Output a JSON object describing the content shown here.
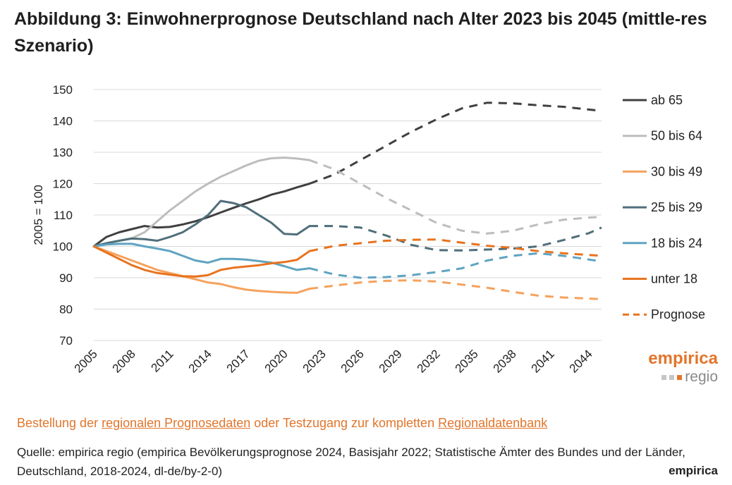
{
  "title": "Abbildung 3: Einwohnerprognose Deutschland nach Alter 2023 bis 2045 (mittle-res Szenario)",
  "order_text": {
    "prefix": "Bestellung der ",
    "link1": "regionalen Prognosedaten",
    "middle": " oder Testzugang zur kompletten ",
    "link2": "Regionaldatenbank"
  },
  "source_text": "Quelle: empirica regio (empirica Bevölkerungsprognose 2024, Basisjahr 2022; Statistische Ämter des Bundes und der Länder, Deutschland, 2018-2024, dl-de/by-2-0)",
  "footer_brand": "empirica",
  "logo": {
    "top": "empirica",
    "sub": "regio"
  },
  "colors": {
    "accent": "#e2752b"
  },
  "chart_data": {
    "type": "line",
    "ylabel": "2005 = 100",
    "xlabel": "",
    "ylim": [
      70,
      150
    ],
    "yticks": [
      70,
      80,
      90,
      100,
      110,
      120,
      130,
      140,
      150
    ],
    "xlim": [
      2005,
      2045
    ],
    "xticks": [
      2005,
      2008,
      2011,
      2014,
      2017,
      2020,
      2023,
      2026,
      2029,
      2032,
      2035,
      2038,
      2041,
      2044
    ],
    "grid": "horizontal",
    "legend_position": "right",
    "legend_prognose_label": "Prognose",
    "series": [
      {
        "name": "ab 65",
        "color": "#404040",
        "actual": [
          [
            2005,
            100
          ],
          [
            2006,
            103
          ],
          [
            2007,
            104.5
          ],
          [
            2008,
            105.5
          ],
          [
            2009,
            106.5
          ],
          [
            2010,
            106
          ],
          [
            2011,
            106.2
          ],
          [
            2012,
            107
          ],
          [
            2013,
            108
          ],
          [
            2014,
            109.3
          ],
          [
            2015,
            110.8
          ],
          [
            2016,
            112.3
          ],
          [
            2017,
            113.7
          ],
          [
            2018,
            115
          ],
          [
            2019,
            116.5
          ],
          [
            2020,
            117.5
          ],
          [
            2021,
            118.8
          ],
          [
            2022,
            120
          ]
        ],
        "forecast": [
          [
            2022,
            120
          ],
          [
            2024,
            123
          ],
          [
            2026,
            127.5
          ],
          [
            2028,
            132
          ],
          [
            2030,
            136.5
          ],
          [
            2032,
            140.5
          ],
          [
            2034,
            144
          ],
          [
            2036,
            145.8
          ],
          [
            2038,
            145.6
          ],
          [
            2040,
            145
          ],
          [
            2042,
            144.5
          ],
          [
            2045,
            143.2
          ]
        ]
      },
      {
        "name": "50 bis 64",
        "color": "#bdbdbd",
        "actual": [
          [
            2005,
            100
          ],
          [
            2006,
            101
          ],
          [
            2007,
            101.8
          ],
          [
            2008,
            102.6
          ],
          [
            2009,
            104.5
          ],
          [
            2010,
            108
          ],
          [
            2011,
            111.5
          ],
          [
            2012,
            114.5
          ],
          [
            2013,
            117.5
          ],
          [
            2014,
            120
          ],
          [
            2015,
            122.2
          ],
          [
            2016,
            124
          ],
          [
            2017,
            125.8
          ],
          [
            2018,
            127.3
          ],
          [
            2019,
            128.1
          ],
          [
            2020,
            128.3
          ],
          [
            2021,
            128
          ],
          [
            2022,
            127.5
          ]
        ],
        "forecast": [
          [
            2022,
            127.5
          ],
          [
            2024,
            124.5
          ],
          [
            2026,
            120
          ],
          [
            2028,
            115.5
          ],
          [
            2030,
            111.5
          ],
          [
            2032,
            107.5
          ],
          [
            2034,
            105
          ],
          [
            2036,
            104.1
          ],
          [
            2038,
            105
          ],
          [
            2040,
            107
          ],
          [
            2042,
            108.5
          ],
          [
            2044,
            109.2
          ],
          [
            2045,
            109.4
          ]
        ]
      },
      {
        "name": "30 bis 49",
        "color": "#f5a25d",
        "actual": [
          [
            2005,
            100
          ],
          [
            2006,
            98.5
          ],
          [
            2007,
            97
          ],
          [
            2008,
            95.5
          ],
          [
            2009,
            94
          ],
          [
            2010,
            92.5
          ],
          [
            2011,
            91.5
          ],
          [
            2012,
            90.5
          ],
          [
            2013,
            89.5
          ],
          [
            2014,
            88.5
          ],
          [
            2015,
            88
          ],
          [
            2016,
            87
          ],
          [
            2017,
            86.2
          ],
          [
            2018,
            85.8
          ],
          [
            2019,
            85.5
          ],
          [
            2020,
            85.3
          ],
          [
            2021,
            85.2
          ],
          [
            2022,
            86.5
          ]
        ],
        "forecast": [
          [
            2022,
            86.5
          ],
          [
            2024,
            87.5
          ],
          [
            2026,
            88.5
          ],
          [
            2028,
            89
          ],
          [
            2030,
            89.2
          ],
          [
            2032,
            88.8
          ],
          [
            2034,
            87.8
          ],
          [
            2036,
            86.8
          ],
          [
            2038,
            85.5
          ],
          [
            2040,
            84.3
          ],
          [
            2042,
            83.7
          ],
          [
            2045,
            83.2
          ]
        ]
      },
      {
        "name": "25 bis 29",
        "color": "#4f6e7a",
        "actual": [
          [
            2005,
            100
          ],
          [
            2006,
            101
          ],
          [
            2007,
            101.8
          ],
          [
            2008,
            102.5
          ],
          [
            2009,
            102.3
          ],
          [
            2010,
            101.8
          ],
          [
            2011,
            103
          ],
          [
            2012,
            104.5
          ],
          [
            2013,
            107
          ],
          [
            2014,
            110
          ],
          [
            2015,
            114.5
          ],
          [
            2016,
            113.8
          ],
          [
            2017,
            112.5
          ],
          [
            2018,
            110
          ],
          [
            2019,
            107.5
          ],
          [
            2020,
            104
          ],
          [
            2021,
            103.8
          ],
          [
            2022,
            106.5
          ]
        ],
        "forecast": [
          [
            2022,
            106.5
          ],
          [
            2024,
            106.5
          ],
          [
            2026,
            106
          ],
          [
            2028,
            103.5
          ],
          [
            2030,
            100.5
          ],
          [
            2032,
            98.8
          ],
          [
            2034,
            98.7
          ],
          [
            2036,
            99
          ],
          [
            2038,
            99.3
          ],
          [
            2040,
            100
          ],
          [
            2042,
            102
          ],
          [
            2044,
            104.2
          ],
          [
            2045,
            106
          ]
        ]
      },
      {
        "name": "18 bis 24",
        "color": "#5fa3c1",
        "actual": [
          [
            2005,
            100
          ],
          [
            2006,
            100.6
          ],
          [
            2007,
            100.8
          ],
          [
            2008,
            100.8
          ],
          [
            2009,
            100
          ],
          [
            2010,
            99.3
          ],
          [
            2011,
            98.5
          ],
          [
            2012,
            97
          ],
          [
            2013,
            95.5
          ],
          [
            2014,
            94.8
          ],
          [
            2015,
            96
          ],
          [
            2016,
            96
          ],
          [
            2017,
            95.8
          ],
          [
            2018,
            95.3
          ],
          [
            2019,
            94.8
          ],
          [
            2020,
            93.7
          ],
          [
            2021,
            92.5
          ],
          [
            2022,
            93
          ]
        ],
        "forecast": [
          [
            2022,
            93
          ],
          [
            2024,
            91
          ],
          [
            2026,
            90
          ],
          [
            2028,
            90.2
          ],
          [
            2030,
            90.8
          ],
          [
            2032,
            91.8
          ],
          [
            2034,
            93
          ],
          [
            2036,
            95.5
          ],
          [
            2038,
            97
          ],
          [
            2040,
            97.8
          ],
          [
            2042,
            97
          ],
          [
            2044,
            95.8
          ],
          [
            2045,
            95.2
          ]
        ]
      },
      {
        "name": "unter 18",
        "color": "#e8731e",
        "actual": [
          [
            2005,
            100
          ],
          [
            2006,
            98
          ],
          [
            2007,
            96
          ],
          [
            2008,
            94
          ],
          [
            2009,
            92.5
          ],
          [
            2010,
            91.5
          ],
          [
            2011,
            91
          ],
          [
            2012,
            90.5
          ],
          [
            2013,
            90.4
          ],
          [
            2014,
            90.8
          ],
          [
            2015,
            92.5
          ],
          [
            2016,
            93.2
          ],
          [
            2017,
            93.6
          ],
          [
            2018,
            94
          ],
          [
            2019,
            94.6
          ],
          [
            2020,
            95
          ],
          [
            2021,
            95.7
          ],
          [
            2022,
            98.5
          ]
        ],
        "forecast": [
          [
            2022,
            98.5
          ],
          [
            2024,
            100.2
          ],
          [
            2026,
            101
          ],
          [
            2028,
            101.8
          ],
          [
            2030,
            102.1
          ],
          [
            2032,
            102.2
          ],
          [
            2034,
            101.2
          ],
          [
            2036,
            100.2
          ],
          [
            2038,
            99.5
          ],
          [
            2040,
            98.5
          ],
          [
            2042,
            97.8
          ],
          [
            2045,
            97
          ]
        ]
      }
    ]
  }
}
